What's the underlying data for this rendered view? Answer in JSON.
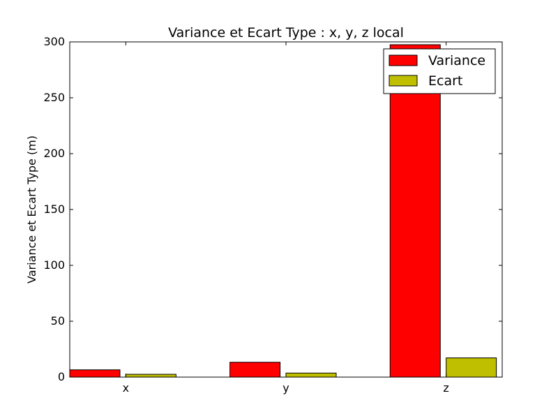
{
  "chart_data": {
    "type": "bar",
    "title": "Variance et Ecart Type : x, y, z local",
    "xlabel": "",
    "ylabel": "Variance et Ecart Type (m)",
    "categories": [
      "x",
      "y",
      "z"
    ],
    "series": [
      {
        "name": "Variance",
        "values": [
          6.5,
          13.3,
          297.5
        ],
        "color": "#ff0000"
      },
      {
        "name": "Ecart",
        "values": [
          2.5,
          3.6,
          17.2
        ],
        "color": "#bfbf00"
      }
    ],
    "ylim": [
      0,
      300
    ],
    "yticks": [
      0,
      50,
      100,
      150,
      200,
      250,
      300
    ],
    "grid": false,
    "legend_position": "top-right"
  }
}
